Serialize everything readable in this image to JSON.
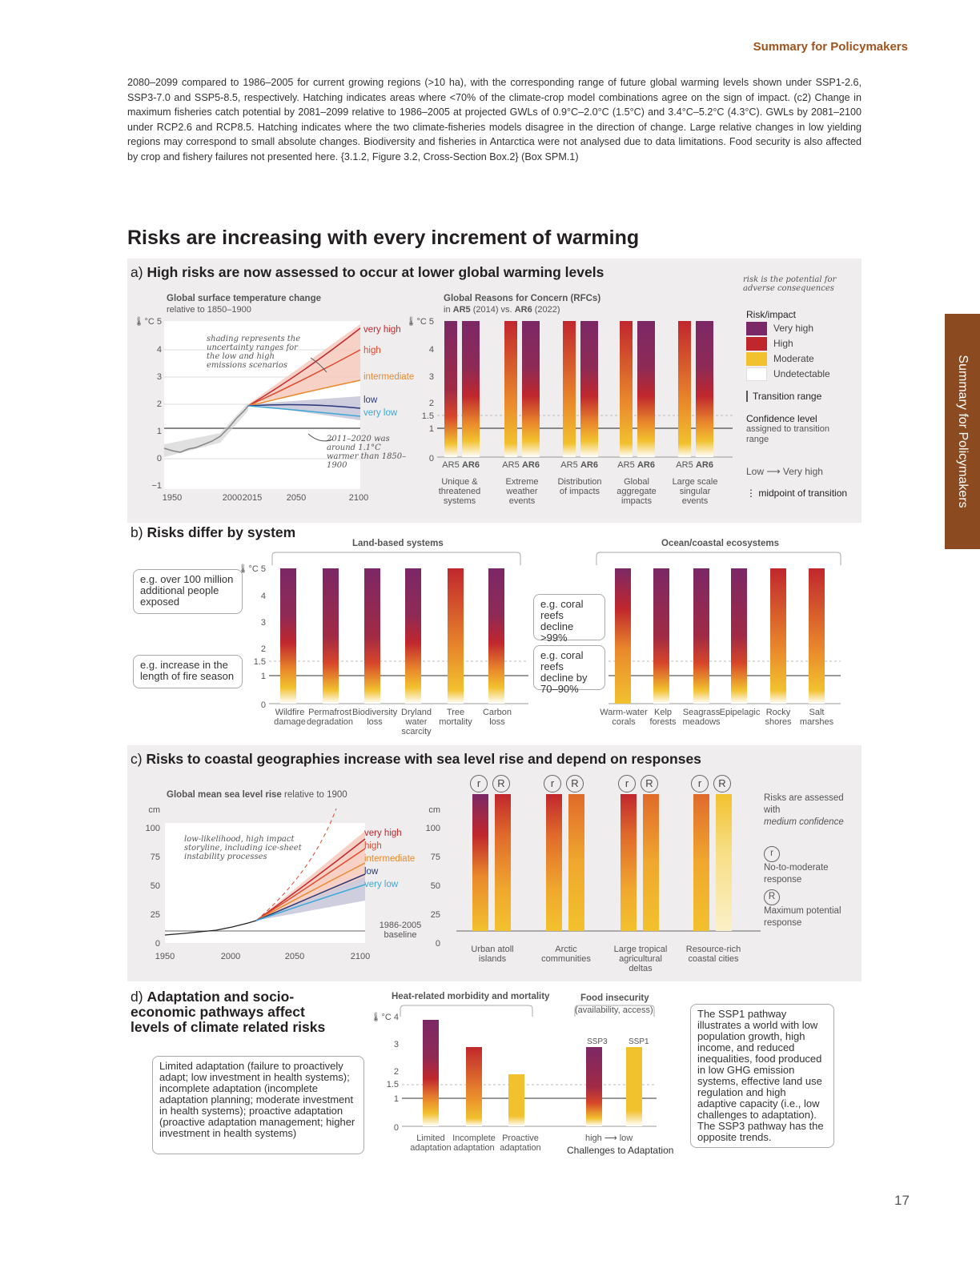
{
  "header": {
    "title": "Summary for Policymakers",
    "side_tab": "Summary for Policymakers",
    "page_number": "17"
  },
  "caption": "2080–2099 compared to 1986–2005 for current growing regions (>10 ha), with the corresponding range of future global warming levels shown under SSP1-2.6, SSP3-7.0 and SSP5-8.5, respectively. Hatching indicates areas where <70% of the climate-crop model combinations agree on the sign of impact. (c2) Change in maximum fisheries catch potential by 2081–2099 relative to 1986–2005 at projected GWLs of 0.9°C–2.0°C (1.5°C) and 3.4°C–5.2°C (4.3°C). GWLs by 2081–2100 under RCP2.6 and RCP8.5. Hatching indicates where the two climate-fisheries models disagree in the direction of change. Large relative changes in low yielding regions may correspond to small absolute changes. Biodiversity and fisheries in Antarctica were not analysed due to data limitations. Food security is also affected by crop and fishery failures not presented here. {3.1.2, Figure 3.2, Cross-Section Box.2} (Box SPM.1)",
  "main_title": "Risks are increasing with every increment of warming",
  "colors": {
    "very_high": "#7b2866",
    "high": "#c0272d",
    "moderate": "#f2c12e",
    "undetectable": "#ffffff",
    "panel_bg": "#efeded",
    "accent": "#a0531c"
  },
  "panel_a": {
    "letter": "a)",
    "title": "High risks are now assessed to occur at lower global warming levels",
    "temp_chart": {
      "title": "Global surface temperature change",
      "subtitle": "relative to 1850–1900",
      "unit": "°C",
      "y_ticks": [
        "5",
        "4",
        "3",
        "2",
        "1",
        "0",
        "−1"
      ],
      "x_ticks": [
        "1950",
        "2000",
        "2015",
        "2050",
        "2100"
      ],
      "note_shading": "shading represents the uncertainty ranges for the low and high emissions scenarios",
      "note_2011": "2011–2020 was around 1.1°C warmer than 1850–1900",
      "scenarios": [
        "very high",
        "high",
        "intermediate",
        "low",
        "very low"
      ]
    },
    "rfc_chart": {
      "title": "Global Reasons for Concern (RFCs)",
      "subtitle_pre": "in",
      "ar5": "AR5",
      "ar5_year": "(2014) vs.",
      "ar6": "AR6",
      "ar6_year": "(2022)",
      "y_ticks": [
        "5",
        "4",
        "3",
        "2",
        "1.5",
        "1",
        "0"
      ],
      "groups": [
        "Unique & threatened systems",
        "Extreme weather events",
        "Distribution of impacts",
        "Global aggregate impacts",
        "Large scale singular events"
      ]
    },
    "legend": {
      "note": "risk is the potential for adverse consequences",
      "title": "Risk/impact",
      "items": [
        "Very high",
        "High",
        "Moderate",
        "Undetectable"
      ],
      "transition": "Transition range",
      "confidence_title": "Confidence level",
      "confidence_sub": "assigned to transition range",
      "low": "Low",
      "very_high": "Very high",
      "midpoint": "midpoint of transition"
    }
  },
  "panel_b": {
    "letter": "b)",
    "title": "Risks differ by system",
    "land_title": "Land-based systems",
    "ocean_title": "Ocean/coastal ecosystems",
    "land": [
      "Wildfire damage",
      "Permafrost degradation",
      "Biodiversity loss",
      "Dryland water scarcity",
      "Tree mortality",
      "Carbon loss"
    ],
    "ocean": [
      "Warm-water corals",
      "Kelp forests",
      "Seagrass meadows",
      "Epipelagic",
      "Rocky shores",
      "Salt marshes"
    ],
    "callout_people": "e.g. over 100 million additional people exposed",
    "callout_fire": "e.g. increase in the length of fire season",
    "callout_coral99": "e.g. coral reefs decline >99%",
    "callout_coral70": "e.g. coral reefs decline by 70–90%",
    "y_ticks": [
      "5",
      "4",
      "3",
      "2",
      "1.5",
      "1",
      "0"
    ]
  },
  "panel_c": {
    "letter": "c)",
    "title": "Risks to coastal geographies increase with sea level rise and depend on responses",
    "sl_title": "Global mean sea level rise",
    "sl_subtitle": "relative to 1900",
    "unit": "cm",
    "y_ticks": [
      "100",
      "75",
      "50",
      "25",
      "0"
    ],
    "x_ticks": [
      "1950",
      "2000",
      "2050",
      "2100"
    ],
    "note": "low-likelihood, high impact storyline, including ice-sheet instability processes",
    "scenarios": [
      "very high",
      "high",
      "intermediate",
      "low",
      "very low"
    ],
    "baseline": "1986-2005 baseline",
    "groups": [
      "Urban atoll islands",
      "Arctic communities",
      "Large tropical agricultural deltas",
      "Resource-rich coastal cities"
    ],
    "r_small": "r",
    "r_big": "R",
    "confidence": "Risks are assessed with",
    "confidence_it": "medium confidence",
    "r_small_desc": "No-to-moderate response",
    "r_big_desc": "Maximum potential response"
  },
  "panel_d": {
    "letter": "d)",
    "title": "Adaptation and socio-economic pathways affect levels of climate related risks",
    "callout_adapt": "Limited adaptation (failure to proactively adapt; low investment in health systems); incomplete adaptation (incomplete adaptation planning; moderate investment in health systems); proactive adaptation (proactive adaptation management; higher investment in health systems)",
    "heat_title": "Heat-related morbidity and mortality",
    "heat_bars": [
      "Limited adaptation",
      "Incomplete adaptation",
      "Proactive adaptation"
    ],
    "food_title": "Food insecurity",
    "food_sub": "(availability, access)",
    "food_bars": [
      "SSP3",
      "SSP1"
    ],
    "challenges_high": "high",
    "challenges_low": "low",
    "challenges": "Challenges to Adaptation",
    "y_ticks": [
      "4",
      "3",
      "2",
      "1.5",
      "1",
      "0"
    ],
    "callout_ssp": "The SSP1 pathway illustrates a world with low population growth, high income, and reduced inequalities, food produced in low GHG emission systems, effective land use regulation and high adaptive capacity (i.e., low challenges to adaptation). The SSP3 pathway has the opposite trends."
  }
}
